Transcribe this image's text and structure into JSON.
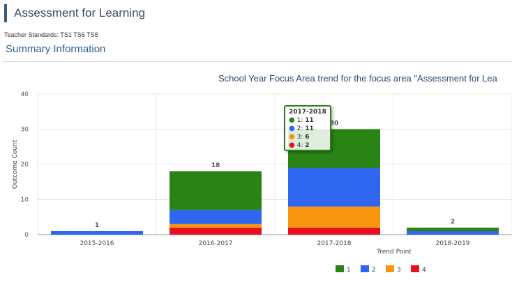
{
  "header": {
    "title": "Assessment for Learning",
    "standards": "Teacher Standards: TS1 TS6 TS8",
    "summary_heading": "Summary Information"
  },
  "chart_data": {
    "type": "bar",
    "stacked": true,
    "title": "School Year Focus Area trend for the focus area \"Assessment for Lea",
    "xlabel": "Trend Point",
    "ylabel": "Outcome Count",
    "ylim": [
      0,
      40
    ],
    "yticks": [
      "0",
      "10",
      "20",
      "30",
      "40"
    ],
    "categories": [
      "2015-2016",
      "2016-2017",
      "2017-2018",
      "2018-2019"
    ],
    "series": [
      {
        "name": "4",
        "color": "#e8101a",
        "values": [
          0,
          2,
          2,
          0
        ]
      },
      {
        "name": "3",
        "color": "#f7950f",
        "values": [
          0,
          1,
          6,
          0
        ]
      },
      {
        "name": "2",
        "color": "#2f66f0",
        "values": [
          1,
          4,
          11,
          1
        ]
      },
      {
        "name": "1",
        "color": "#2a8415",
        "values": [
          0,
          11,
          11,
          1
        ]
      }
    ],
    "totals": [
      "1",
      "18",
      "30",
      "2"
    ],
    "legend_order": [
      "1",
      "2",
      "3",
      "4"
    ],
    "legend_position": "bottom",
    "grid": true
  },
  "tooltip": {
    "title": "2017-2018",
    "rows": [
      {
        "label": "1:",
        "value": "11",
        "color": "#2a8415"
      },
      {
        "label": "2:",
        "value": "11",
        "color": "#2f66f0"
      },
      {
        "label": "3:",
        "value": "6",
        "color": "#f7950f"
      },
      {
        "label": "4:",
        "value": "2",
        "color": "#e8101a"
      }
    ]
  }
}
